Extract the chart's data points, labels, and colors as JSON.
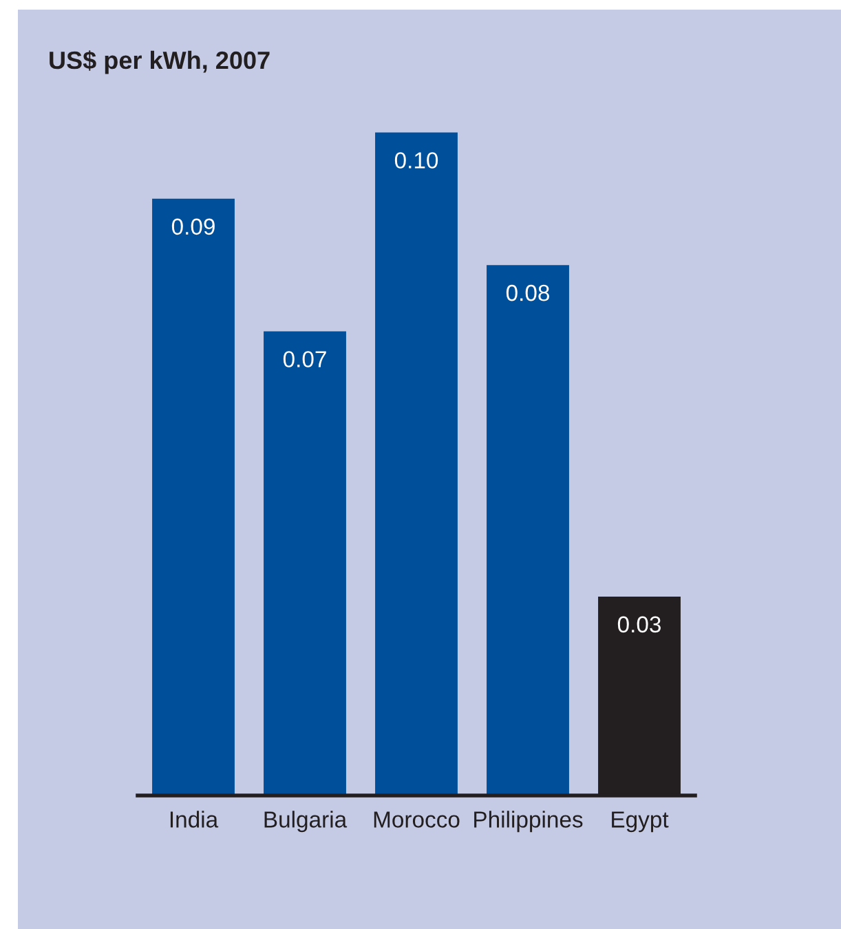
{
  "chart_data": {
    "type": "bar",
    "title": "US$ per kWh, 2007",
    "categories": [
      "India",
      "Bulgaria",
      "Morocco",
      "Philippines",
      "Egypt"
    ],
    "values": [
      0.09,
      0.07,
      0.1,
      0.08,
      0.03
    ],
    "colors": [
      "#004f9a",
      "#004f9a",
      "#004f9a",
      "#004f9a",
      "#231f20"
    ],
    "value_labels": [
      "0.09",
      "0.07",
      "0.10",
      "0.08",
      "0.03"
    ],
    "grid": false,
    "legend": false
  }
}
